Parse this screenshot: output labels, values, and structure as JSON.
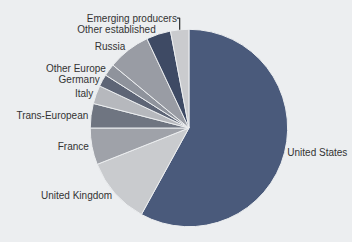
{
  "chart_data": {
    "type": "pie",
    "categories": [
      "United States",
      "United Kingdom",
      "France",
      "Trans-European",
      "Italy",
      "Germany",
      "Other Europe",
      "Russia",
      "Other established",
      "Emerging producers"
    ],
    "values": [
      58,
      11,
      6,
      4,
      3,
      2,
      2,
      7,
      4,
      3
    ],
    "colors": [
      "#4a5a7b",
      "#c9cbce",
      "#9fa2a9",
      "#6f7581",
      "#b6b8bd",
      "#5e6576",
      "#8f939c",
      "#999ca4",
      "#3e4a64",
      "#cacbce"
    ]
  }
}
